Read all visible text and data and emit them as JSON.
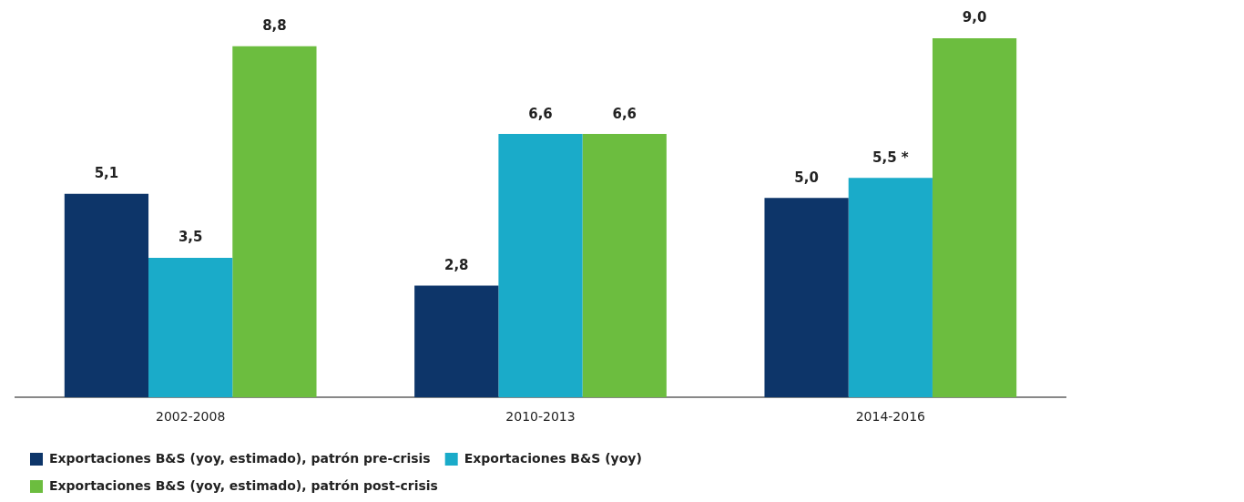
{
  "chart_data": {
    "type": "bar",
    "categories": [
      "2002-2008",
      "2010-2013",
      "2014-2016"
    ],
    "series": [
      {
        "name": "Exportaciones B&S (yoy, estimado), patrón pre-crisis",
        "color": "#0d3569",
        "values": [
          5.1,
          2.8,
          5.0
        ],
        "value_labels": [
          "5,1",
          "2,8",
          "5,0"
        ]
      },
      {
        "name": "Exportaciones B&S (yoy)",
        "color": "#1aabc9",
        "values": [
          3.5,
          6.6,
          5.5
        ],
        "value_labels": [
          "3,5",
          "6,6",
          "5,5 *"
        ]
      },
      {
        "name": "Exportaciones B&S (yoy, estimado), patrón post-crisis",
        "color": "#6cbd3f",
        "values": [
          8.8,
          6.6,
          9.0
        ],
        "value_labels": [
          "8,8",
          "6,6",
          "9,0"
        ]
      }
    ],
    "ylim": [
      0,
      9
    ],
    "grid": false,
    "legend": "bottom left",
    "tick_labels": "x"
  }
}
